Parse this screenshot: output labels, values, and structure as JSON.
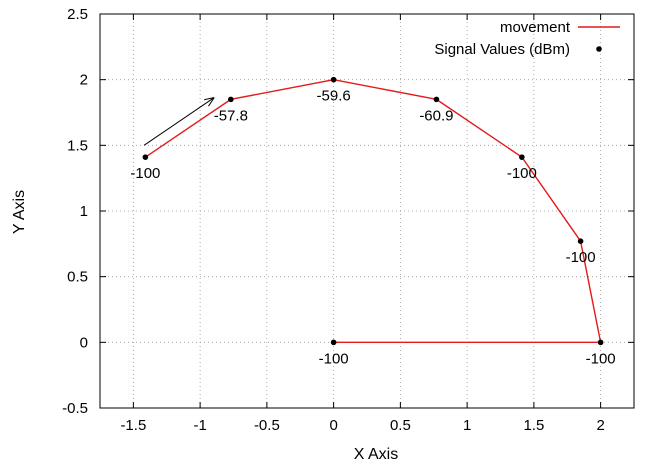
{
  "chart_data": {
    "type": "line",
    "xlabel": "X Axis",
    "ylabel": "Y Axis",
    "xlim": [
      -1.75,
      2.25
    ],
    "ylim": [
      -0.5,
      2.5
    ],
    "xticks": [
      -1.5,
      -1,
      -0.5,
      0,
      0.5,
      1,
      1.5,
      2
    ],
    "xtick_labels": [
      "-1.5",
      "-1",
      "-0.5",
      "0",
      "0.5",
      "1",
      "1.5",
      "2"
    ],
    "yticks": [
      -0.5,
      0,
      0.5,
      1,
      1.5,
      2,
      2.5
    ],
    "ytick_labels": [
      "-0.5",
      "0",
      "0.5",
      "1",
      "1.5",
      "2",
      "2.5"
    ],
    "grid": true,
    "legend_position": "top-right",
    "series": [
      {
        "name": "movement",
        "type": "line",
        "color": "#e41a1c",
        "points": [
          [
            0,
            0
          ],
          [
            2,
            0
          ],
          [
            1.85,
            0.77
          ],
          [
            1.41,
            1.41
          ],
          [
            0.77,
            1.85
          ],
          [
            0,
            2
          ],
          [
            -0.77,
            1.85
          ],
          [
            -1.41,
            1.41
          ]
        ]
      },
      {
        "name": "Signal Values (dBm)",
        "type": "scatter",
        "color": "#000000",
        "points": [
          {
            "x": 0,
            "y": 0,
            "label": "-100"
          },
          {
            "x": 2,
            "y": 0,
            "label": "-100"
          },
          {
            "x": 1.85,
            "y": 0.77,
            "label": "-100"
          },
          {
            "x": 1.41,
            "y": 1.41,
            "label": "-100"
          },
          {
            "x": 0.77,
            "y": 1.85,
            "label": "-60.9"
          },
          {
            "x": 0,
            "y": 2,
            "label": "-59.6"
          },
          {
            "x": -0.77,
            "y": 1.85,
            "label": "-57.8"
          },
          {
            "x": -1.41,
            "y": 1.41,
            "label": "-100"
          }
        ]
      }
    ],
    "annotations": [
      {
        "type": "arrow",
        "from": [
          -1.42,
          1.5
        ],
        "to": [
          -0.9,
          1.86
        ],
        "color": "#000000"
      }
    ]
  }
}
